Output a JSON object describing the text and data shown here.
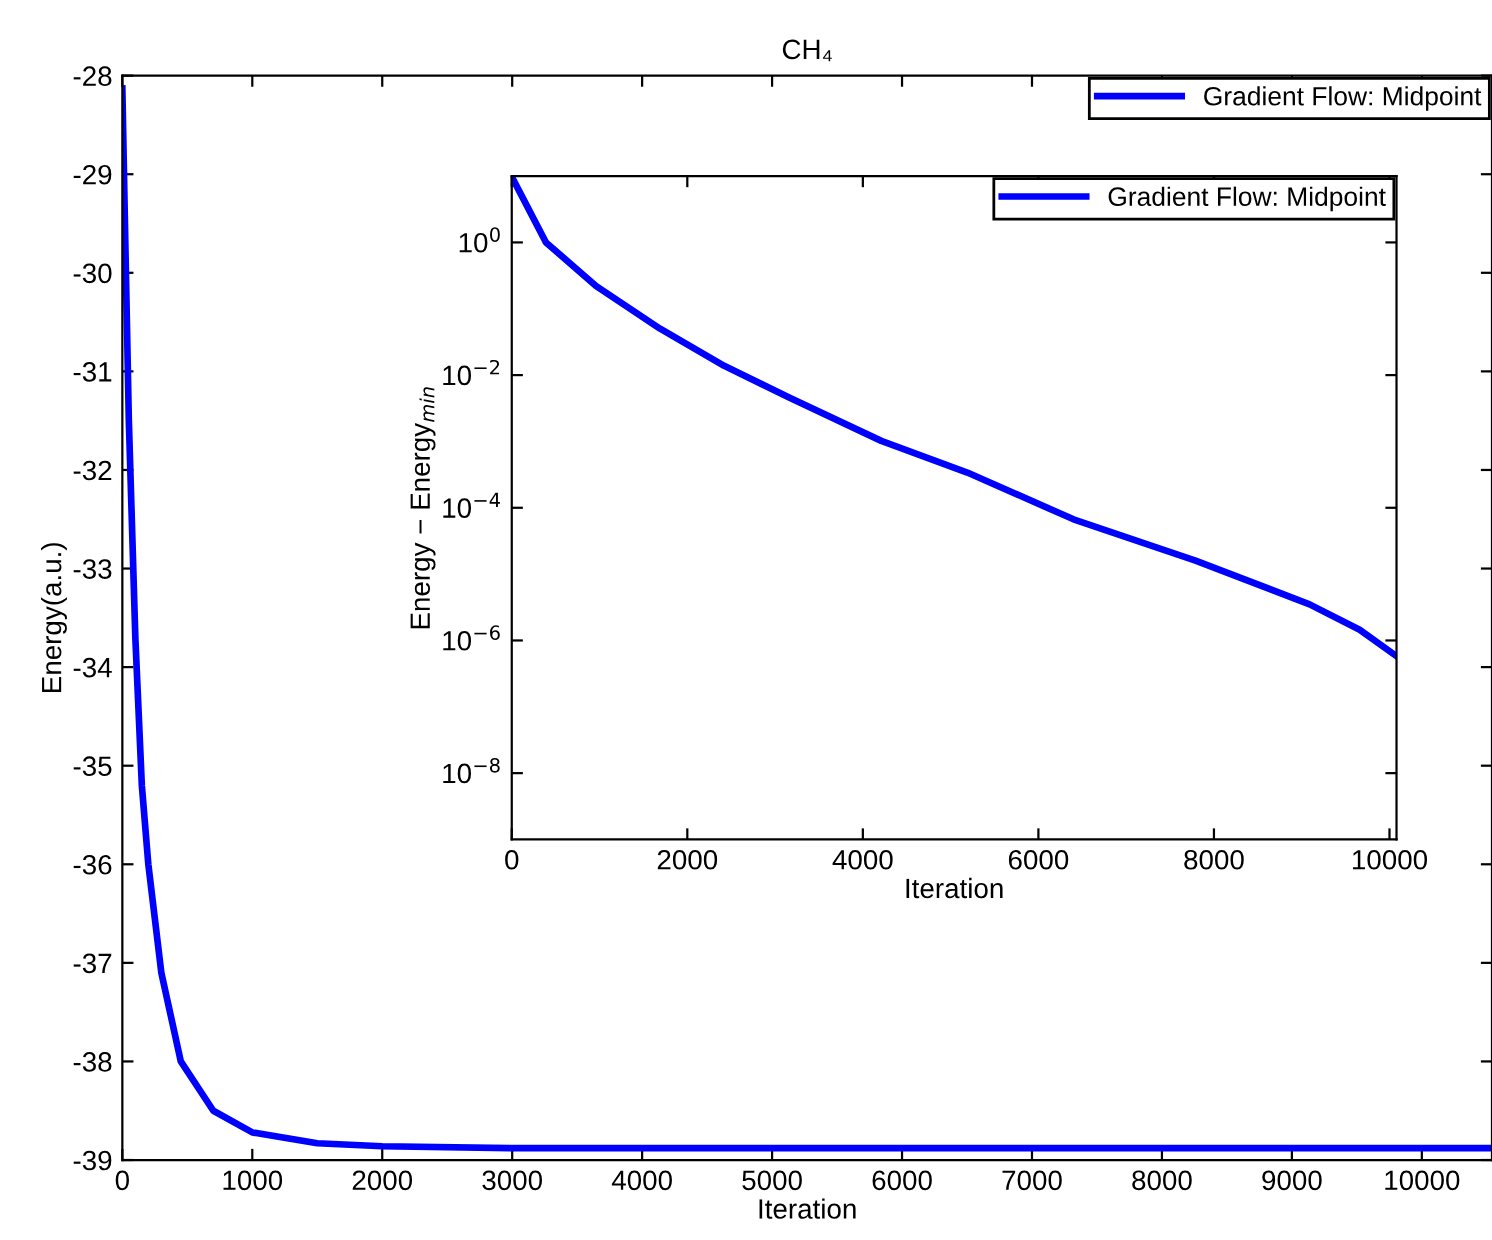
{
  "chart_data": [
    {
      "type": "line",
      "title": "CH₄",
      "xlabel": "Iteration",
      "ylabel": "Energy(a.u.)",
      "xlim": [
        0,
        10540
      ],
      "ylim": [
        -39,
        -28
      ],
      "xticks": [
        0,
        1000,
        2000,
        3000,
        4000,
        5000,
        6000,
        7000,
        8000,
        9000,
        10000
      ],
      "yticks": [
        -39,
        -38,
        -37,
        -36,
        -35,
        -34,
        -33,
        -32,
        -31,
        -30,
        -29,
        -28
      ],
      "grid": false,
      "legend": "top right",
      "marker": "none",
      "line_style": "solid",
      "series": [
        {
          "name": "Gradient Flow: Midpoint",
          "color": "#0000ff",
          "x": [
            0,
            20,
            50,
            100,
            150,
            200,
            300,
            450,
            700,
            1000,
            1500,
            2000,
            3000,
            5000,
            10540
          ],
          "values": [
            -28.13,
            -29.5,
            -31.5,
            -33.7,
            -35.2,
            -36.0,
            -37.1,
            -38.0,
            -38.5,
            -38.72,
            -38.83,
            -38.86,
            -38.88,
            -38.88,
            -38.88
          ]
        }
      ]
    },
    {
      "type": "line",
      "xlabel": "Iteration",
      "ylabel": "Energy − Energy$_{min}$",
      "log": "y",
      "xlim": [
        0,
        10080
      ],
      "ylim": [
        1e-09,
        10
      ],
      "xticks": [
        0,
        2000,
        4000,
        6000,
        8000,
        10000
      ],
      "yticks": [
        {
          "value": 1e-08,
          "label": "10$^{−8}$"
        },
        {
          "value": 1e-06,
          "label": "10$^{−6}$"
        },
        {
          "value": 0.0001,
          "label": "10$^{−4}$"
        },
        {
          "value": 0.01,
          "label": "10$^{−2}$"
        },
        {
          "value": 1,
          "label": "10$^{0}$"
        }
      ],
      "grid": false,
      "legend": "top right",
      "marker": "none",
      "line_style": "solid",
      "series": [
        {
          "name": "Gradient Flow: Midpoint",
          "color": "#0000ff",
          "x": [
            0,
            390,
            960,
            1690,
            2420,
            3160,
            4210,
            5190,
            6400,
            7790,
            9090,
            9660,
            10080
          ],
          "values": [
            9.8,
            1,
            0.22,
            0.05,
            0.0138,
            0.0046,
            0.00102,
            0.00034,
            6.7e-05,
            1.6e-05,
            3.5e-06,
            1.45e-06,
            5.8e-07
          ]
        }
      ]
    }
  ]
}
